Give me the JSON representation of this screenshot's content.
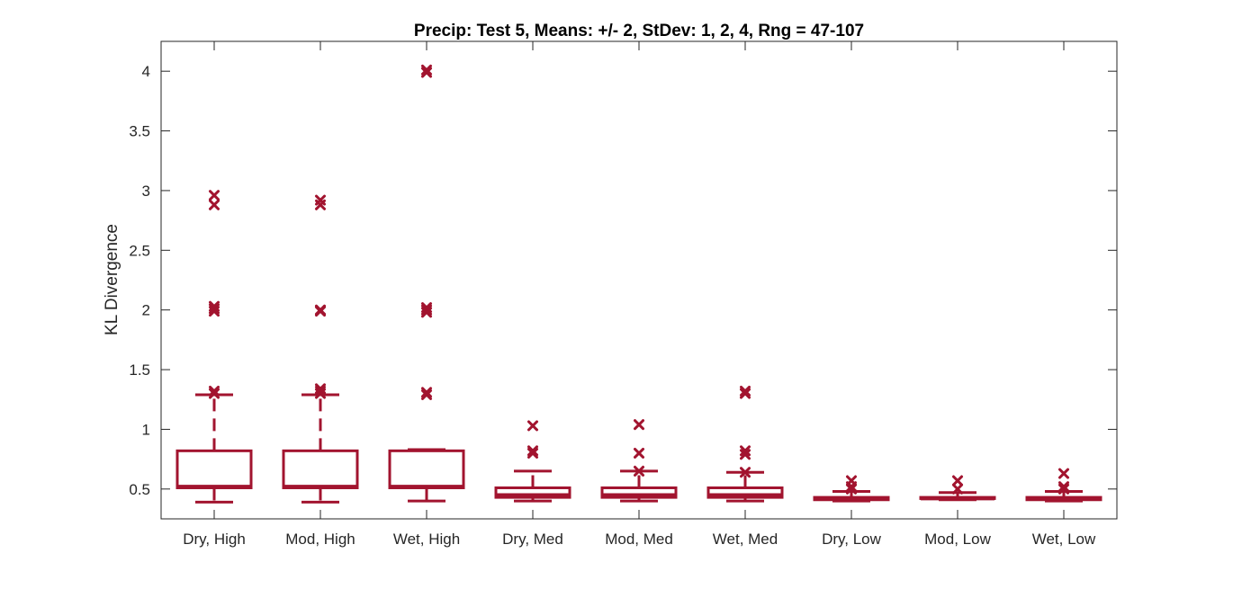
{
  "chart_data": {
    "type": "boxplot",
    "title": "Precip: Test 5, Means: +/- 2, StDev: 1, 2, 4, Rng = 47-107",
    "xlabel": "",
    "ylabel": "KL Divergence",
    "ylim": [
      0.25,
      4.25
    ],
    "yticks": [
      0.5,
      1,
      1.5,
      2,
      2.5,
      3,
      3.5,
      4
    ],
    "ytick_labels": [
      "0.5",
      "1",
      "1.5",
      "2",
      "2.5",
      "3",
      "3.5",
      "4"
    ],
    "grid": false,
    "color": "#a2142f",
    "categories": [
      "Dry, High",
      "Mod, High",
      "Wet, High",
      "Dry, Med",
      "Mod, Med",
      "Wet, Med",
      "Dry, Low",
      "Mod, Low",
      "Wet, Low"
    ],
    "boxes": [
      {
        "whisker_low": 0.39,
        "q1": 0.51,
        "median": 0.52,
        "q3": 0.82,
        "whisker_high": 1.29,
        "outliers": [
          1.3,
          1.32,
          1.99,
          2.01,
          2.03,
          2.88,
          2.96
        ]
      },
      {
        "whisker_low": 0.39,
        "q1": 0.51,
        "median": 0.52,
        "q3": 0.82,
        "whisker_high": 1.29,
        "outliers": [
          1.3,
          1.32,
          1.34,
          1.99,
          2.0,
          2.88,
          2.92
        ]
      },
      {
        "whisker_low": 0.4,
        "q1": 0.51,
        "median": 0.52,
        "q3": 0.82,
        "whisker_high": 0.83,
        "outliers": [
          1.29,
          1.31,
          1.98,
          2.0,
          2.02,
          3.99,
          4.01
        ]
      },
      {
        "whisker_low": 0.4,
        "q1": 0.43,
        "median": 0.45,
        "q3": 0.51,
        "whisker_high": 0.65,
        "outliers": [
          0.8,
          0.82,
          1.03
        ]
      },
      {
        "whisker_low": 0.4,
        "q1": 0.43,
        "median": 0.45,
        "q3": 0.51,
        "whisker_high": 0.65,
        "outliers": [
          0.65,
          0.8,
          1.04
        ]
      },
      {
        "whisker_low": 0.4,
        "q1": 0.43,
        "median": 0.45,
        "q3": 0.51,
        "whisker_high": 0.64,
        "outliers": [
          0.64,
          0.79,
          0.82,
          1.3,
          1.32
        ]
      },
      {
        "whisker_low": 0.4,
        "q1": 0.41,
        "median": 0.42,
        "q3": 0.43,
        "whisker_high": 0.48,
        "outliers": [
          0.5,
          0.52,
          0.57
        ]
      },
      {
        "whisker_low": 0.41,
        "q1": 0.42,
        "median": 0.42,
        "q3": 0.43,
        "whisker_high": 0.47,
        "outliers": [
          0.5,
          0.57
        ]
      },
      {
        "whisker_low": 0.4,
        "q1": 0.41,
        "median": 0.42,
        "q3": 0.43,
        "whisker_high": 0.48,
        "outliers": [
          0.5,
          0.52,
          0.63
        ]
      }
    ]
  }
}
